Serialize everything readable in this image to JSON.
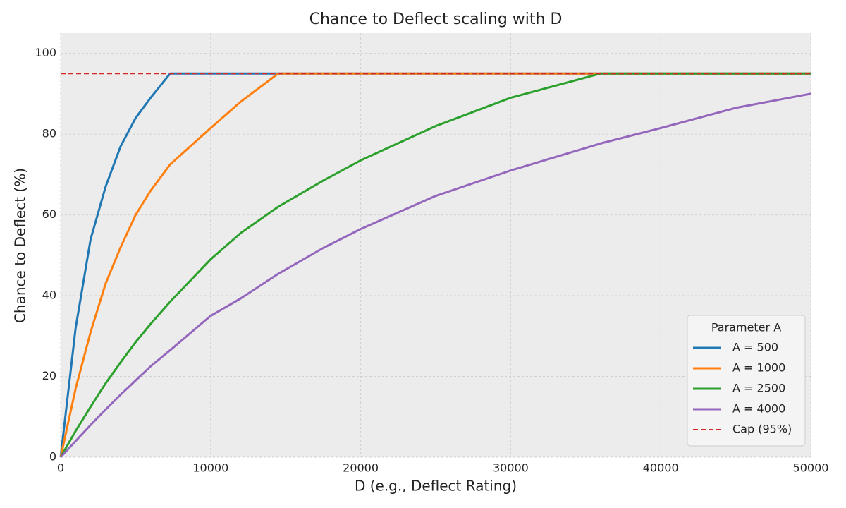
{
  "chart_data": {
    "type": "line",
    "title": "Chance to Deflect scaling with D",
    "x_label": "D (e.g., Deflect Rating)",
    "y_label": "Chance to Deflect (%)",
    "legend_title": "Parameter A",
    "legend_position": "lower right",
    "grid": true,
    "xlim": [
      0,
      50000
    ],
    "ylim": [
      0,
      105
    ],
    "xticks": [
      0,
      10000,
      20000,
      30000,
      40000,
      50000
    ],
    "yticks": [
      0,
      20,
      40,
      60,
      80,
      100
    ],
    "x": [
      0,
      1000,
      2000,
      3000,
      4000,
      5000,
      6000,
      7300,
      10000,
      12000,
      14500,
      17500,
      20000,
      25000,
      30000,
      36000,
      40000,
      45000,
      50000
    ],
    "series": [
      {
        "name": "A = 500",
        "color": "#1f77b4",
        "values": [
          0,
          32,
          54,
          67,
          77,
          84,
          89,
          95,
          95,
          95,
          95,
          95,
          95,
          95,
          95,
          95,
          95,
          95,
          95
        ]
      },
      {
        "name": "A = 1000",
        "color": "#ff7f0e",
        "values": [
          0,
          17,
          31,
          43,
          52,
          60,
          66,
          72.5,
          81.5,
          88,
          95,
          95,
          95,
          95,
          95,
          95,
          95,
          95,
          95
        ]
      },
      {
        "name": "A = 2500",
        "color": "#2ca02c",
        "values": [
          0,
          6.5,
          12.5,
          18.3,
          23.5,
          28.5,
          33,
          38.5,
          49,
          55.5,
          62,
          68.5,
          73.5,
          82,
          89,
          95,
          95,
          95,
          95
        ]
      },
      {
        "name": "A = 4000",
        "color": "#9467bd",
        "values": [
          0,
          4,
          8,
          11.8,
          15.5,
          19,
          22.5,
          26.5,
          35,
          39.3,
          45.4,
          51.8,
          56.5,
          64.7,
          71,
          77.7,
          81.5,
          86.5,
          90
        ]
      }
    ],
    "reference_line": {
      "name": "Cap (95%)",
      "value": 95,
      "color": "#d62728"
    }
  }
}
